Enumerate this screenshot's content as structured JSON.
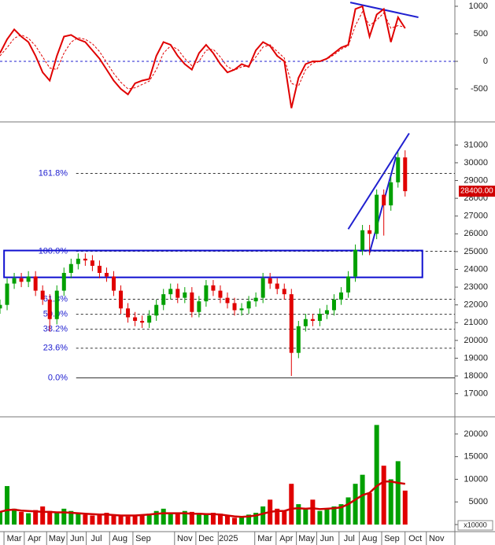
{
  "chart_data": [
    {
      "type": "line",
      "x": [
        0,
        7,
        14,
        21,
        28,
        35,
        42,
        49,
        56,
        63,
        70,
        77,
        84,
        91,
        98,
        105,
        112,
        119,
        126,
        133,
        140,
        147,
        154,
        161,
        168,
        175,
        182,
        189,
        196,
        203,
        210,
        217,
        224,
        231,
        238,
        245,
        252,
        259,
        266,
        273,
        280,
        287,
        294,
        301,
        308,
        315,
        322,
        329,
        336,
        343,
        350,
        357,
        364,
        371,
        378,
        385,
        392,
        399
      ],
      "series": [
        {
          "color": "#e00000",
          "values": [
            150,
            400,
            580,
            450,
            350,
            100,
            -200,
            -350,
            100,
            450,
            480,
            400,
            350,
            200,
            50,
            -150,
            -350,
            -500,
            -600,
            -400,
            -350,
            -320,
            100,
            350,
            300,
            100,
            -50,
            -150,
            150,
            300,
            150,
            -50,
            -200,
            -150,
            -50,
            -100,
            200,
            350,
            280,
            100,
            0,
            -850,
            -300,
            -50,
            0,
            0,
            50,
            150,
            250,
            300,
            950,
            1000,
            450,
            850,
            950,
            350,
            800,
            600
          ]
        },
        {
          "color": "#e00000",
          "dashed": true,
          "values": [
            100,
            250,
            420,
            480,
            420,
            280,
            80,
            -120,
            -150,
            150,
            350,
            430,
            400,
            320,
            180,
            -20,
            -220,
            -380,
            -500,
            -480,
            -420,
            -360,
            -150,
            150,
            280,
            220,
            50,
            -80,
            0,
            200,
            220,
            80,
            -100,
            -160,
            -100,
            -80,
            80,
            260,
            300,
            180,
            60,
            -400,
            -450,
            -150,
            -30,
            0,
            40,
            120,
            220,
            280,
            650,
            900,
            650,
            750,
            880,
            600,
            650,
            620
          ]
        }
      ],
      "trendlines": [
        {
          "color": "#2020d0",
          "x": [
            345,
            412
          ],
          "values": [
            1070,
            800
          ]
        }
      ],
      "zero_line": 0,
      "xlim": [
        0,
        448
      ],
      "ylim": [
        -1100,
        1114
      ],
      "yticks": [
        1000,
        500,
        0,
        -500
      ]
    },
    {
      "type": "candlestick",
      "x": [
        0,
        7,
        14,
        21,
        28,
        35,
        42,
        49,
        56,
        63,
        70,
        77,
        84,
        91,
        98,
        105,
        112,
        119,
        126,
        133,
        140,
        147,
        154,
        161,
        168,
        175,
        182,
        189,
        196,
        203,
        210,
        217,
        224,
        231,
        238,
        245,
        252,
        259,
        266,
        273,
        280,
        287,
        294,
        301,
        308,
        315,
        322,
        329,
        336,
        343,
        350,
        357,
        364,
        371,
        378,
        385,
        392,
        399
      ],
      "open": [
        21800,
        22000,
        23200,
        23500,
        23300,
        23600,
        22800,
        22300,
        21200,
        22800,
        23800,
        24300,
        24600,
        24500,
        24200,
        23800,
        23600,
        22800,
        21800,
        21300,
        21100,
        21000,
        21400,
        22000,
        22600,
        22900,
        22400,
        22700,
        21600,
        22200,
        23100,
        22800,
        22400,
        22100,
        21700,
        21800,
        22200,
        22400,
        23500,
        23200,
        22900,
        22600,
        19300,
        20800,
        21200,
        21100,
        21500,
        21700,
        22300,
        22700,
        23600,
        25100,
        26200,
        26000,
        28200,
        27600,
        28900,
        30300
      ],
      "high": [
        22300,
        23500,
        23800,
        23800,
        23900,
        23900,
        23100,
        22600,
        23100,
        24100,
        24600,
        24900,
        24900,
        24800,
        24500,
        24100,
        23900,
        23100,
        22100,
        21600,
        21400,
        21700,
        22300,
        22900,
        23200,
        23200,
        23000,
        23000,
        22500,
        23400,
        23400,
        23100,
        22700,
        22400,
        22100,
        22500,
        22700,
        23800,
        23800,
        23500,
        23200,
        22900,
        21100,
        21500,
        21500,
        21800,
        22000,
        22600,
        23000,
        23900,
        25400,
        26500,
        26500,
        28500,
        28500,
        29200,
        30600,
        30700
      ],
      "low": [
        21500,
        21700,
        22900,
        23000,
        23000,
        22500,
        22000,
        20500,
        20900,
        22500,
        23500,
        24000,
        24200,
        23900,
        23500,
        23300,
        22500,
        21500,
        21000,
        20800,
        20700,
        20700,
        21100,
        21700,
        22300,
        22100,
        22100,
        21300,
        21300,
        21900,
        22500,
        22100,
        21800,
        21400,
        21400,
        21500,
        21900,
        22100,
        22900,
        22600,
        22300,
        18000,
        19000,
        20500,
        20800,
        20800,
        21200,
        21400,
        22000,
        22400,
        23300,
        24800,
        24800,
        25700,
        25900,
        27300,
        28600,
        28100
      ],
      "close": [
        22000,
        23200,
        23500,
        23300,
        23600,
        22800,
        22300,
        21200,
        22800,
        23800,
        24300,
        24600,
        24500,
        24200,
        23800,
        23600,
        22800,
        21800,
        21300,
        21100,
        21000,
        21400,
        22000,
        22600,
        22900,
        22400,
        22700,
        21600,
        22200,
        23100,
        22800,
        22400,
        22100,
        21700,
        21800,
        22200,
        22400,
        23500,
        23200,
        22900,
        22600,
        19300,
        20800,
        21200,
        21100,
        21500,
        21700,
        22300,
        22700,
        23600,
        25100,
        26200,
        26000,
        28200,
        27600,
        28900,
        30300,
        28400
      ],
      "up_color": "#00a000",
      "down_color": "#e00000",
      "fib_levels": [
        {
          "label": "161.8%",
          "value": 29400
        },
        {
          "label": "100.0%",
          "value": 25020
        },
        {
          "label": "61.8%",
          "value": 22320
        },
        {
          "label": "50.0%",
          "value": 21470
        },
        {
          "label": "38.2%",
          "value": 20630
        },
        {
          "label": "23.6%",
          "value": 19560
        },
        {
          "label": "0.0%",
          "value": 17890
        }
      ],
      "fib_start": 75,
      "trendlines": [
        {
          "color": "#2020d0",
          "x": [
            343,
            403
          ],
          "values": [
            26260,
            31660
          ]
        },
        {
          "color": "#2020d0",
          "x": [
            364,
            390
          ],
          "values": [
            24930,
            30340
          ]
        }
      ],
      "box": {
        "color": "#1010d0",
        "x": [
          4,
          416
        ],
        "values": [
          23550,
          25060
        ]
      },
      "price_tag": {
        "value": 28400,
        "label": "28400.00"
      },
      "xlim": [
        0,
        448
      ],
      "ylim": [
        15700,
        32300
      ],
      "yticks": [
        17000,
        18000,
        19000,
        20000,
        21000,
        22000,
        23000,
        24000,
        25000,
        26000,
        27000,
        28000,
        29000,
        30000,
        31000
      ]
    },
    {
      "type": "bar",
      "x": [
        0,
        7,
        14,
        21,
        28,
        35,
        42,
        49,
        56,
        63,
        70,
        77,
        84,
        91,
        98,
        105,
        112,
        119,
        126,
        133,
        140,
        147,
        154,
        161,
        168,
        175,
        182,
        189,
        196,
        203,
        210,
        217,
        224,
        231,
        238,
        245,
        252,
        259,
        266,
        273,
        280,
        287,
        294,
        301,
        308,
        315,
        322,
        329,
        336,
        343,
        350,
        357,
        364,
        371,
        378,
        385,
        392,
        399
      ],
      "values": [
        3000,
        8500,
        3500,
        2800,
        2500,
        3200,
        4000,
        3000,
        2800,
        3500,
        3000,
        2500,
        2200,
        2000,
        2400,
        2600,
        2200,
        2000,
        1800,
        2000,
        2200,
        2400,
        3000,
        3500,
        2600,
        2400,
        3000,
        2800,
        2500,
        2200,
        2600,
        2400,
        2000,
        1500,
        1800,
        2200,
        2600,
        4000,
        5500,
        3500,
        3000,
        9000,
        4500,
        3500,
        5500,
        3000,
        3500,
        4000,
        4500,
        6000,
        9000,
        11000,
        7000,
        22000,
        13000,
        10000,
        14000,
        7500
      ],
      "ma": {
        "color": "#d00000",
        "values": [
          2800,
          3200,
          3300,
          3100,
          3000,
          2900,
          2800,
          2800,
          2700,
          2700,
          2600,
          2500,
          2400,
          2300,
          2200,
          2200,
          2100,
          2000,
          2000,
          2000,
          2100,
          2200,
          2400,
          2500,
          2500,
          2500,
          2500,
          2400,
          2400,
          2300,
          2300,
          2200,
          2000,
          1800,
          1700,
          1800,
          2000,
          2400,
          2800,
          3000,
          3000,
          3500,
          3600,
          3500,
          3600,
          3400,
          3500,
          3600,
          3800,
          4500,
          5500,
          6500,
          7000,
          8500,
          9500,
          9500,
          9200,
          9000
        ]
      },
      "color": "#00a000",
      "unit": "x10000",
      "xlim": [
        0,
        448
      ],
      "ylim": [
        0,
        23800
      ],
      "yticks": [
        0,
        5000,
        10000,
        15000,
        20000
      ],
      "xticks": [
        {
          "value": 14,
          "label": "Mar"
        },
        {
          "value": 34,
          "label": "Apr"
        },
        {
          "value": 56,
          "label": "May"
        },
        {
          "value": 76,
          "label": "Jun"
        },
        {
          "value": 95,
          "label": "Jul"
        },
        {
          "value": 118,
          "label": "Aug"
        },
        {
          "value": 141,
          "label": "Sep"
        },
        {
          "value": 182,
          "label": "Nov"
        },
        {
          "value": 203,
          "label": "Dec"
        },
        {
          "value": 225,
          "label": "2025"
        },
        {
          "value": 261,
          "label": "Mar"
        },
        {
          "value": 282,
          "label": "Apr"
        },
        {
          "value": 302,
          "label": "May"
        },
        {
          "value": 322,
          "label": "Jun"
        },
        {
          "value": 344,
          "label": "Jul"
        },
        {
          "value": 364,
          "label": "Aug"
        },
        {
          "value": 386,
          "label": "Sep"
        },
        {
          "value": 409,
          "label": "Oct"
        },
        {
          "value": 430,
          "label": "Nov"
        }
      ]
    }
  ]
}
